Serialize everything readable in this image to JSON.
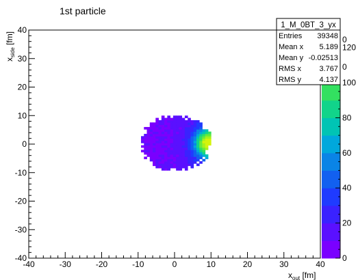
{
  "chart_data": {
    "type": "heatmap",
    "title": "1st particle",
    "xlabel": {
      "main": "x",
      "sub": "out",
      "unit": "[fm]"
    },
    "ylabel": {
      "main": "x",
      "sub": "side",
      "unit": "[fm]"
    },
    "xlim": [
      -40,
      40
    ],
    "ylim": [
      -40,
      40
    ],
    "zlim": [
      0,
      130
    ],
    "x_ticks": [
      "-40",
      "-30",
      "-20",
      "-10",
      "0",
      "10",
      "20",
      "30",
      "40"
    ],
    "y_ticks": [
      "-40",
      "-30",
      "-20",
      "-10",
      "0",
      "10",
      "20",
      "30",
      "40"
    ],
    "z_ticks": [
      "0",
      "20",
      "40",
      "60",
      "80",
      "100",
      "120"
    ],
    "z_ticks_partial": [
      "0",
      "0"
    ],
    "distribution": {
      "shape": "ellipse",
      "center": [
        0,
        0
      ],
      "semi_axis_x": 10,
      "semi_axis_y": 10,
      "peak_at": [
        9,
        0
      ],
      "peak_value": 120
    },
    "stats": {
      "name": "1_M_0BT_3_yx",
      "rows": [
        {
          "label": "Entries",
          "value": "39348"
        },
        {
          "label": "Mean x",
          "value": "5.189"
        },
        {
          "label": "Mean y",
          "value": "-0.02513"
        },
        {
          "label": "RMS x",
          "value": "3.767"
        },
        {
          "label": "RMS y",
          "value": "4.137"
        }
      ]
    },
    "palette": [
      "#7a00ff",
      "#5a10ff",
      "#3a22ff",
      "#1f3bff",
      "#1260f0",
      "#0a84e6",
      "#00a8dc",
      "#00c4b4",
      "#11d48a",
      "#33e060",
      "#66ec3a",
      "#a6f11c",
      "#d4f40c"
    ]
  }
}
